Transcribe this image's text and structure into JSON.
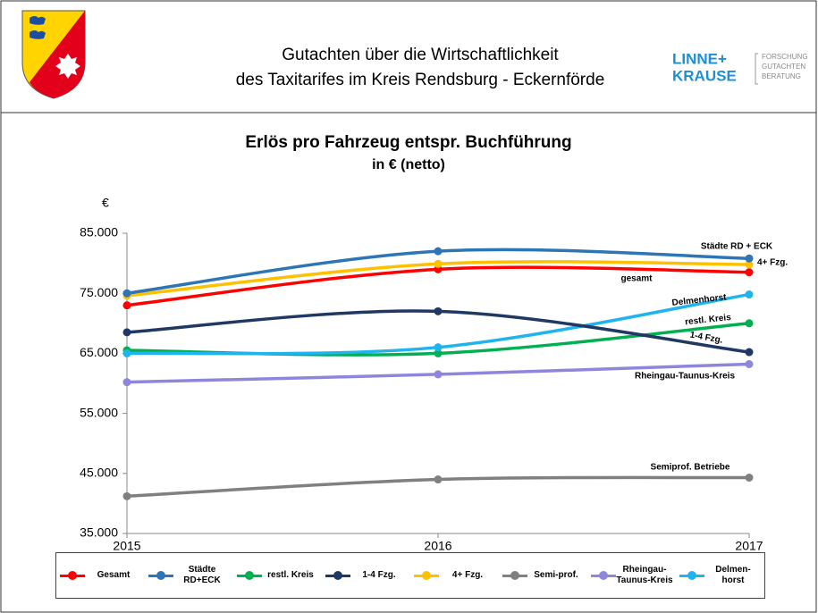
{
  "header": {
    "title": [
      "Gutachten über die Wirtschaftlichkeit",
      "des Taxitarifes im Kreis Rendsburg - Eckernförde"
    ],
    "logo": {
      "name": [
        "LINNE+",
        "KRAUSE"
      ],
      "tagline": [
        "FORSCHUNG",
        "GUTACHTEN",
        "BERATUNG"
      ]
    }
  },
  "chart_data": {
    "type": "line",
    "title": "Erlös pro Fahrzeug entspr. Buchführung",
    "subtitle": "in € (netto)",
    "y_label": "€",
    "x": [
      2015,
      2016,
      2017
    ],
    "xlim": [
      2015,
      2017
    ],
    "xticks": [
      2015,
      2016,
      2017
    ],
    "ylim": [
      35000,
      85000
    ],
    "yticks": [
      {
        "value": 35000,
        "label": "35.000"
      },
      {
        "value": 45000,
        "label": "45.000"
      },
      {
        "value": 55000,
        "label": "55.000"
      },
      {
        "value": 65000,
        "label": "65.000"
      },
      {
        "value": 75000,
        "label": "75.000"
      },
      {
        "value": 85000,
        "label": "85.000"
      }
    ],
    "grid": false,
    "smooth": true,
    "legend": "bottom",
    "series": [
      {
        "name": "Gesamt",
        "color": "#ff0000",
        "values": [
          73000,
          79000,
          78500
        ]
      },
      {
        "name": "Städte RD+ECK",
        "color": "#2e75b6",
        "values": [
          75000,
          82000,
          80800
        ]
      },
      {
        "name": "restl. Kreis",
        "color": "#00b050",
        "values": [
          65500,
          65000,
          70000
        ]
      },
      {
        "name": "1-4 Fzg.",
        "color": "#203864",
        "values": [
          68500,
          72000,
          65200
        ]
      },
      {
        "name": "4+ Fzg.",
        "color": "#ffc000",
        "values": [
          74600,
          79900,
          79800
        ]
      },
      {
        "name": "Semi-prof.",
        "color": "#808080",
        "values": [
          41200,
          44000,
          44300
        ]
      },
      {
        "name": "Rheingau-Taunus-Kreis",
        "color": "#8e86dc",
        "values": [
          60200,
          61500,
          63200
        ]
      },
      {
        "name": "Delmen-horst",
        "color": "#1fb4ee",
        "values": [
          65000,
          66000,
          74800
        ]
      }
    ],
    "annotations": [
      "Städte RD + ECK",
      "4+ Fzg.",
      "gesamt",
      "Delmenhorst",
      "restl. Kreis",
      "1-4 Fzg.",
      "Rheingau-Taunus-Kreis",
      "Semiprof. Betriebe"
    ]
  }
}
